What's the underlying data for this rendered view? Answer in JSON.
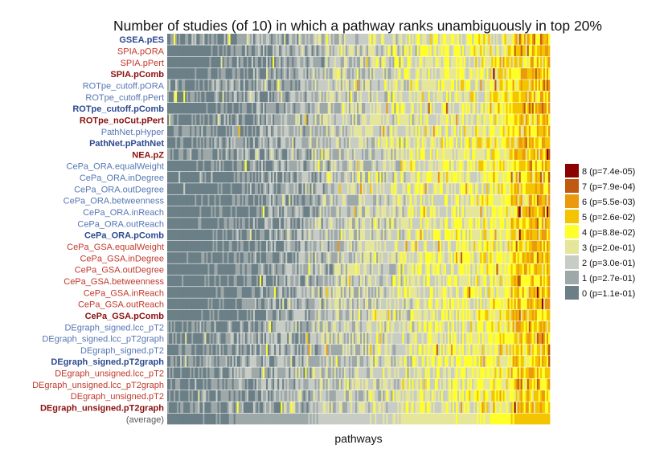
{
  "chart_data": {
    "type": "heatmap",
    "title": "Number of studies (of 10) in which a pathway ranks unambiguously in top 20%",
    "xlabel": "pathways",
    "ylabel": "",
    "rows": [
      {
        "label": "GSEA.pES",
        "color": "#2c4a8f",
        "bold": true
      },
      {
        "label": "SPIA.pORA",
        "color": "#c0392b",
        "bold": false
      },
      {
        "label": "SPIA.pPert",
        "color": "#c0392b",
        "bold": false
      },
      {
        "label": "SPIA.pComb",
        "color": "#8b1010",
        "bold": true
      },
      {
        "label": "ROTpe_cutoff.pORA",
        "color": "#5577b4",
        "bold": false
      },
      {
        "label": "ROTpe_cutoff.pPert",
        "color": "#5577b4",
        "bold": false
      },
      {
        "label": "ROTpe_cutoff.pComb",
        "color": "#2c4a8f",
        "bold": true
      },
      {
        "label": "ROTpe_noCut.pPert",
        "color": "#8b1010",
        "bold": true
      },
      {
        "label": "PathNet.pHyper",
        "color": "#5577b4",
        "bold": false
      },
      {
        "label": "PathNet.pPathNet",
        "color": "#2c4a8f",
        "bold": true
      },
      {
        "label": "NEA.pZ",
        "color": "#8b1010",
        "bold": true
      },
      {
        "label": "CePa_ORA.equalWeight",
        "color": "#5577b4",
        "bold": false
      },
      {
        "label": "CePa_ORA.inDegree",
        "color": "#5577b4",
        "bold": false
      },
      {
        "label": "CePa_ORA.outDegree",
        "color": "#5577b4",
        "bold": false
      },
      {
        "label": "CePa_ORA.betweenness",
        "color": "#5577b4",
        "bold": false
      },
      {
        "label": "CePa_ORA.inReach",
        "color": "#5577b4",
        "bold": false
      },
      {
        "label": "CePa_ORA.outReach",
        "color": "#5577b4",
        "bold": false
      },
      {
        "label": "CePa_ORA.pComb",
        "color": "#2c4a8f",
        "bold": true
      },
      {
        "label": "CePa_GSA.equalWeight",
        "color": "#c0392b",
        "bold": false
      },
      {
        "label": "CePa_GSA.inDegree",
        "color": "#c0392b",
        "bold": false
      },
      {
        "label": "CePa_GSA.outDegree",
        "color": "#c0392b",
        "bold": false
      },
      {
        "label": "CePa_GSA.betweenness",
        "color": "#c0392b",
        "bold": false
      },
      {
        "label": "CePa_GSA.inReach",
        "color": "#c0392b",
        "bold": false
      },
      {
        "label": "CePa_GSA.outReach",
        "color": "#c0392b",
        "bold": false
      },
      {
        "label": "CePa_GSA.pComb",
        "color": "#8b1010",
        "bold": true
      },
      {
        "label": "DEgraph_signed.lcc_pT2",
        "color": "#5577b4",
        "bold": false
      },
      {
        "label": "DEgraph_signed.lcc_pT2graph",
        "color": "#5577b4",
        "bold": false
      },
      {
        "label": "DEgraph_signed.pT2",
        "color": "#5577b4",
        "bold": false
      },
      {
        "label": "DEgraph_signed.pT2graph",
        "color": "#2c4a8f",
        "bold": true
      },
      {
        "label": "DEgraph_unsigned.lcc_pT2",
        "color": "#c0392b",
        "bold": false
      },
      {
        "label": "DEgraph_unsigned.lcc_pT2graph",
        "color": "#c0392b",
        "bold": false
      },
      {
        "label": "DEgraph_unsigned.pT2",
        "color": "#c0392b",
        "bold": false
      },
      {
        "label": "DEgraph_unsigned.pT2graph",
        "color": "#8b1010",
        "bold": true
      },
      {
        "label": "(average)",
        "color": "#555555",
        "bold": false
      }
    ],
    "n_pathways": 236,
    "value_range": [
      0,
      8
    ],
    "trend": "values generally increase from left to right across pathways",
    "legend": {
      "position": "right",
      "entries": [
        {
          "label": "8 (p=7.4e-05)",
          "value": 8,
          "color": "#8b0000"
        },
        {
          "label": "7 (p=7.9e-04)",
          "value": 7,
          "color": "#c05a10"
        },
        {
          "label": "6 (p=5.5e-03)",
          "value": 6,
          "color": "#eb9a10"
        },
        {
          "label": "5 (p=2.6e-02)",
          "value": 5,
          "color": "#f5c400"
        },
        {
          "label": "4 (p=8.8e-02)",
          "value": 4,
          "color": "#ffff2a"
        },
        {
          "label": "3 (p=2.0e-01)",
          "value": 3,
          "color": "#e6e69a"
        },
        {
          "label": "2 (p=3.0e-01)",
          "value": 2,
          "color": "#c7ccc5"
        },
        {
          "label": "1 (p=2.7e-01)",
          "value": 1,
          "color": "#9ea8a8"
        },
        {
          "label": "0 (p=1.1e-01)",
          "value": 0,
          "color": "#6b7f87"
        }
      ]
    }
  }
}
